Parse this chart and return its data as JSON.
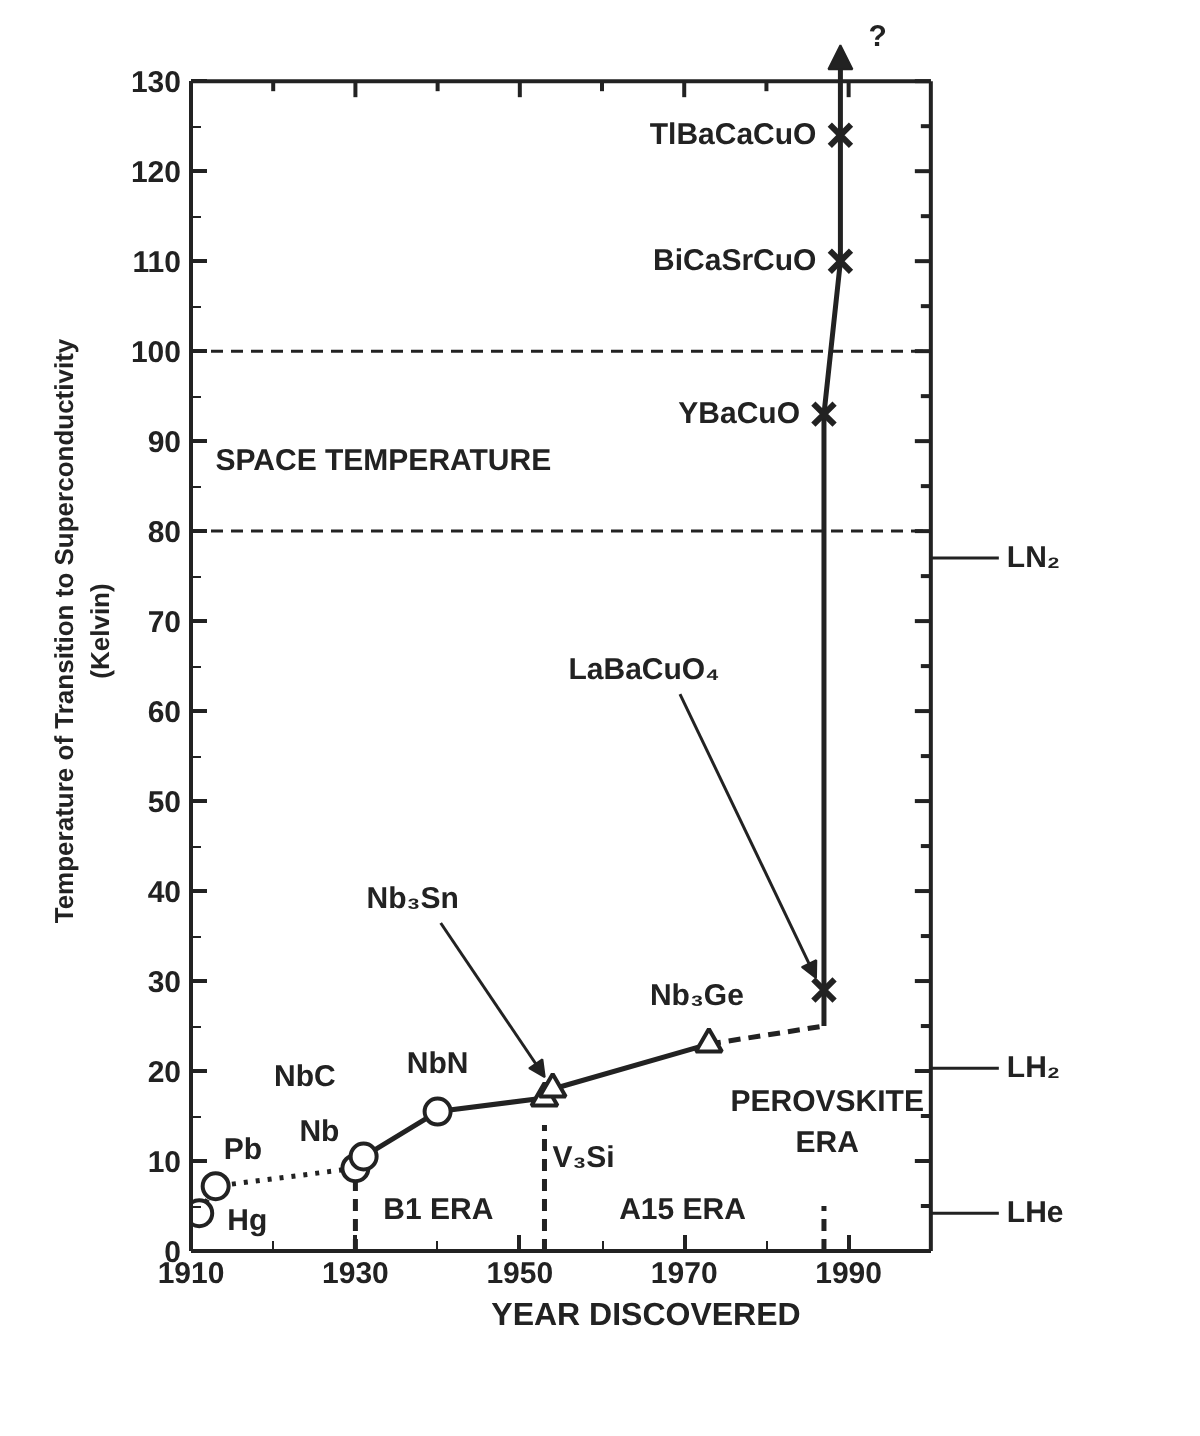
{
  "chart_data": {
    "type": "line",
    "xlabel": "YEAR DISCOVERED",
    "ylabel": "Temperature of Transition to Superconductivity\n(Kelvin)",
    "xlim": [
      1910,
      2000
    ],
    "xticks": [
      1910,
      1930,
      1950,
      1970,
      1990
    ],
    "ylim": [
      0,
      130
    ],
    "yticks": [
      0,
      10,
      20,
      30,
      40,
      50,
      60,
      70,
      80,
      90,
      100,
      110,
      120,
      130
    ],
    "grid": false,
    "series": [
      {
        "line_style": "dotted",
        "color": "#222222",
        "x": [
          1911,
          1913,
          1930,
          1931
        ],
        "values": [
          4.2,
          7.2,
          9.2,
          10.5
        ]
      },
      {
        "line_style": "solid",
        "color": "#222222",
        "x": [
          1931,
          1940,
          1953,
          1954,
          1973
        ],
        "values": [
          10.5,
          15.5,
          17,
          18,
          23
        ]
      },
      {
        "line_style": "dashed",
        "color": "#222222",
        "x": [
          1973,
          1987
        ],
        "values": [
          23,
          25
        ]
      },
      {
        "line_style": "solid",
        "color": "#222222",
        "x": [
          1987,
          1987,
          1987,
          1989,
          1989,
          1989
        ],
        "values": [
          25,
          29,
          93,
          110,
          124,
          130
        ]
      },
      {
        "line_style": "dashed",
        "color": "#222222",
        "x": [
          1930,
          1930
        ],
        "values": [
          0,
          8
        ]
      },
      {
        "line_style": "dashed",
        "color": "#222222",
        "x": [
          1953,
          1953
        ],
        "values": [
          0,
          14
        ]
      },
      {
        "line_style": "dashed",
        "color": "#222222",
        "x": [
          1987,
          1987
        ],
        "values": [
          0,
          5
        ]
      },
      {
        "type": "scatter",
        "marker": "circle",
        "color": "#222222",
        "x": [
          1911,
          1913,
          1930,
          1931,
          1940
        ],
        "values": [
          4.2,
          7.2,
          9.2,
          10.5,
          15.5
        ]
      },
      {
        "type": "scatter",
        "marker": "triangle",
        "color": "#222222",
        "x": [
          1953,
          1954,
          1973
        ],
        "values": [
          17,
          18,
          23
        ]
      },
      {
        "type": "scatter",
        "marker": "cross",
        "color": "#222222",
        "x": [
          1987,
          1987,
          1989,
          1989
        ],
        "values": [
          29,
          93,
          110,
          124
        ]
      }
    ],
    "ref_lines": [
      {
        "axis": "y",
        "value": 100,
        "line_style": "dashed"
      },
      {
        "axis": "y",
        "value": 80,
        "line_style": "dashed"
      },
      {
        "axis": "y",
        "value": 77,
        "label": "LN₂"
      },
      {
        "axis": "y",
        "value": 20.3,
        "label": "LH₂"
      },
      {
        "axis": "y",
        "value": 4.2,
        "label": "LHe"
      }
    ],
    "annotations": [
      {
        "text": "Hg",
        "x": 1911,
        "y": 4.2
      },
      {
        "text": "Pb",
        "x": 1913,
        "y": 7.2
      },
      {
        "text": "Nb",
        "x": 1930,
        "y": 9.2
      },
      {
        "text": "NbC",
        "x": 1931,
        "y": 10.5
      },
      {
        "text": "NbN",
        "x": 1940,
        "y": 15.5
      },
      {
        "text": "Nb₃Sn",
        "x": 1954,
        "y": 18
      },
      {
        "text": "V₃Si",
        "x": 1953,
        "y": 17
      },
      {
        "text": "Nb₃Ge",
        "x": 1973,
        "y": 23
      },
      {
        "text": "LaBaCuO₄",
        "x": 1987,
        "y": 29
      },
      {
        "text": "YBaCuO",
        "x": 1987,
        "y": 93
      },
      {
        "text": "BiCaSrCuO",
        "x": 1989,
        "y": 110
      },
      {
        "text": "TlBaCaCuO",
        "x": 1989,
        "y": 124
      },
      {
        "text": "?",
        "x": 1989,
        "y": 130
      },
      "B1  ERA",
      "A15  ERA",
      "PEROVSKITE\nERA",
      "SPACE TEMPERATURE"
    ]
  }
}
